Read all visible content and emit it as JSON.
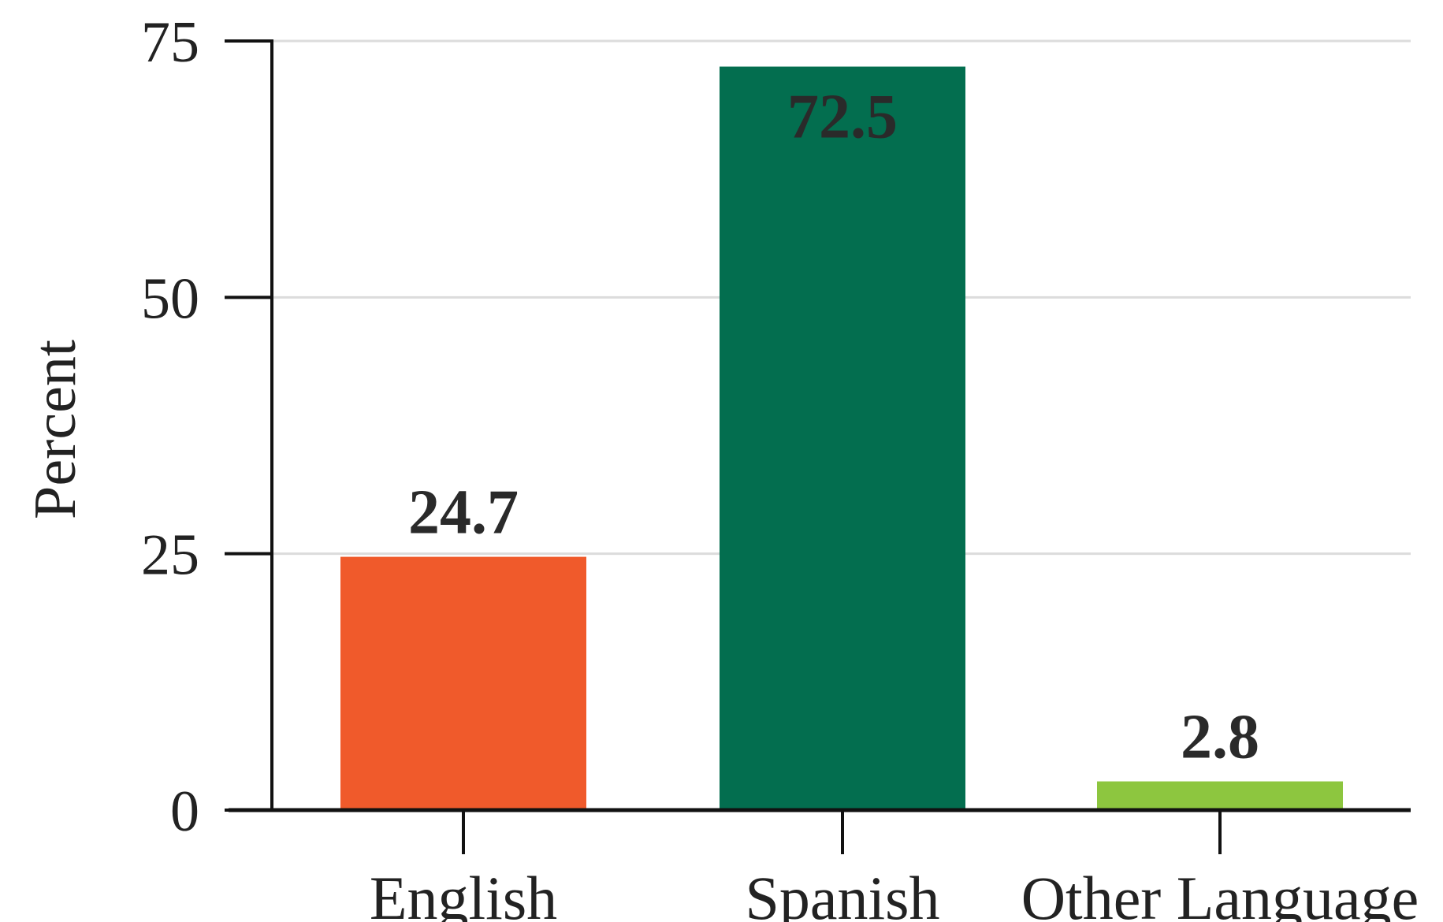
{
  "chart_data": {
    "type": "bar",
    "title": "",
    "xlabel": "",
    "ylabel": "Percent",
    "categories": [
      "English",
      "Spanish",
      "Other Language"
    ],
    "values": [
      24.7,
      72.5,
      2.8
    ],
    "value_labels": [
      "24.7",
      "72.5",
      "2.8"
    ],
    "colors": [
      "#F05A2B",
      "#036E4F",
      "#8DC63F"
    ],
    "ylim": [
      0,
      75
    ],
    "yticks": [
      0,
      25,
      50,
      75
    ],
    "ytick_labels": [
      "0",
      "25",
      "50",
      "75"
    ],
    "grid": true,
    "legend": "none"
  }
}
